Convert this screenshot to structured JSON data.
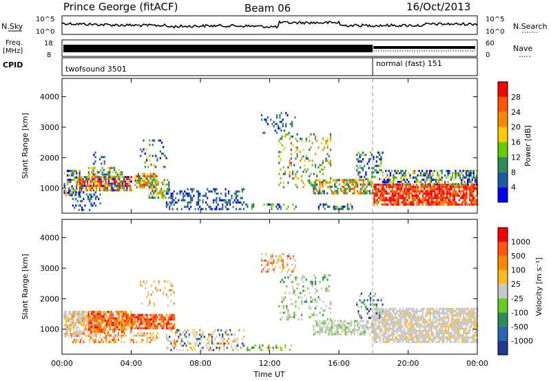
{
  "header": {
    "station": "Prince George (fitACF)",
    "beam": "Beam 06",
    "date": "16/Oct/2013"
  },
  "strips": {
    "nsky_label": "N.Sky",
    "nsearch_label": "N.Search",
    "nsky_ticks": [
      "10^5",
      "10^0"
    ],
    "nsearch_ticks": [
      "10^5",
      "10^0"
    ],
    "freq_label_1": "Freq.",
    "freq_label_2": "[MHz]",
    "freq_ticks": [
      "18",
      "8"
    ],
    "nave_label": "Nave",
    "nave_ticks": [
      "60",
      "0"
    ],
    "cpid_label": "CPID",
    "cpid_segments": [
      {
        "label": "twofsound 3501",
        "start_hour": 0,
        "end_hour": 18
      },
      {
        "label": "normal (fast) 151",
        "start_hour": 18,
        "end_hour": 24
      }
    ]
  },
  "colors": {
    "power": [
      "#0000ff",
      "#1e5aa0",
      "#2e8b57",
      "#66cc00",
      "#ffcc00",
      "#ff8800",
      "#ff5500",
      "#ff0000"
    ],
    "velocity": [
      "#1e3c8c",
      "#2a64b4",
      "#2e8b57",
      "#66cc22",
      "#c8c8c8",
      "#ffbb22",
      "#ff8800",
      "#ff5511",
      "#ff0000"
    ]
  },
  "chart_data": [
    {
      "type": "heatmap",
      "name": "power",
      "xlabel": "Time UT",
      "ylabel": "Slant Range [km]",
      "x_ticks": [
        "00:00",
        "04:00",
        "08:00",
        "12:00",
        "16:00",
        "20:00",
        "00:00"
      ],
      "y_ticks": [
        "1000",
        "2000",
        "3000",
        "4000"
      ],
      "xlim_hours": [
        0,
        24
      ],
      "ylim_km": [
        180,
        4600
      ],
      "colorbar_label": "Power [dB]",
      "colorbar_ticks": [
        "4",
        "8",
        "12",
        "16",
        "20",
        "24",
        "28"
      ],
      "colorbar_range": [
        0,
        30
      ]
    },
    {
      "type": "heatmap",
      "name": "velocity",
      "xlabel": "Time UT",
      "ylabel": "Slant Range [km]",
      "x_ticks": [
        "00:00",
        "04:00",
        "08:00",
        "12:00",
        "16:00",
        "20:00",
        "00:00"
      ],
      "y_ticks": [
        "1000",
        "2000",
        "3000",
        "4000"
      ],
      "xlim_hours": [
        0,
        24
      ],
      "ylim_km": [
        180,
        4600
      ],
      "colorbar_label": "Velocity [m s⁻¹]",
      "colorbar_ticks": [
        "1000",
        "500",
        "100",
        "25",
        "-25",
        "-100",
        "-500",
        "-1000"
      ]
    }
  ],
  "xaxis": {
    "ticks": [
      "00:00",
      "04:00",
      "08:00",
      "12:00",
      "16:00",
      "20:00",
      "00:00"
    ],
    "label": "Time UT"
  }
}
